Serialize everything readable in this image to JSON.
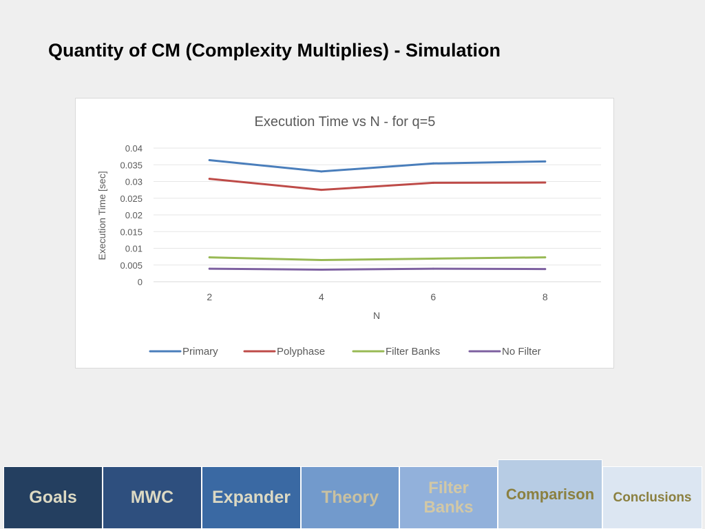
{
  "slide": {
    "title": "Quantity of CM (Complexity Multiplies) - Simulation"
  },
  "chart_data": {
    "type": "line",
    "title": "Execution Time vs N - for q=5",
    "xlabel": "N",
    "ylabel": "Execution Time [sec]",
    "x": [
      2,
      4,
      6,
      8
    ],
    "categories": [
      "2",
      "4",
      "6",
      "8"
    ],
    "ylim": [
      0,
      0.04
    ],
    "yticks": [
      "0",
      "0.005",
      "0.01",
      "0.015",
      "0.02",
      "0.025",
      "0.03",
      "0.035",
      "0.04"
    ],
    "grid": true,
    "legend_position": "bottom",
    "series": [
      {
        "name": "Primary",
        "values": [
          0.0364,
          0.033,
          0.0354,
          0.036
        ],
        "color": "#4a7ebb"
      },
      {
        "name": "Polyphase",
        "values": [
          0.0308,
          0.0275,
          0.0296,
          0.0297
        ],
        "color": "#be4b48"
      },
      {
        "name": "Filter Banks",
        "values": [
          0.0073,
          0.0065,
          0.0069,
          0.0073
        ],
        "color": "#98b954"
      },
      {
        "name": "No Filter",
        "values": [
          0.0039,
          0.0036,
          0.0039,
          0.0038
        ],
        "color": "#7d60a0"
      }
    ]
  },
  "nav": {
    "tabs": [
      {
        "name": "tab-goals",
        "label": "Goals",
        "bg": "#243f60",
        "fg": "#dcd9c3"
      },
      {
        "name": "tab-mwc",
        "label": "MWC",
        "bg": "#2e4f7e",
        "fg": "#dcd9c3"
      },
      {
        "name": "tab-expander",
        "label": "Expander",
        "bg": "#3a69a3",
        "fg": "#dcd9c3"
      },
      {
        "name": "tab-theory",
        "label": "Theory",
        "bg": "#729acc",
        "fg": "#c9c1a1"
      },
      {
        "name": "tab-filter-banks",
        "label": "Filter Banks",
        "bg": "#92b1db",
        "fg": "#d2c8a6"
      },
      {
        "name": "tab-comparison",
        "label": "Comparison",
        "bg": "#b7cce4",
        "fg": "#8b8040"
      },
      {
        "name": "tab-conclusions",
        "label": "Conclusions",
        "bg": "#dce6f2",
        "fg": "#8b8040"
      }
    ]
  }
}
